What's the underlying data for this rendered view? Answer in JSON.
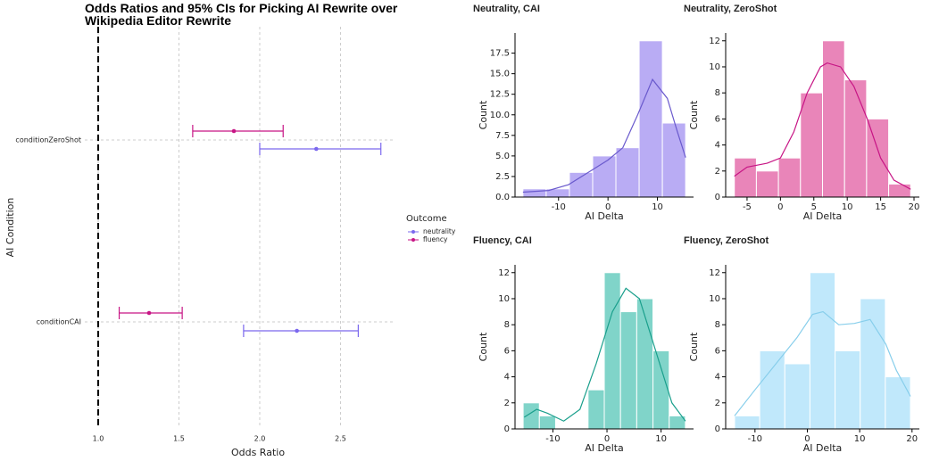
{
  "chart_data": [
    {
      "type": "forest",
      "title": "Odds Ratios and 95% CIs for Picking AI Rewrite over Wikipedia Editor Rewrite",
      "xlabel": "Odds Ratio",
      "ylabel": "AI Condition",
      "categories": [
        "conditionZeroShot",
        "conditionCAI"
      ],
      "series": [
        {
          "name": "neutrality",
          "color": "#7b68ee",
          "values": [
            2.35,
            2.23
          ],
          "lower": [
            2.0,
            1.9
          ],
          "upper": [
            2.75,
            2.61
          ]
        },
        {
          "name": "fluency",
          "color": "#c71585",
          "values": [
            1.84,
            1.315
          ],
          "lower": [
            1.585,
            1.13
          ],
          "upper": [
            2.145,
            1.52
          ]
        }
      ],
      "legend_title": "Outcome",
      "reference_line": 1,
      "xlim": [
        0.917,
        2.84
      ],
      "xticks": [
        {
          "value": 1,
          "label": "1.0"
        },
        1.5,
        {
          "value": 2,
          "label": "2.0"
        },
        2.5
      ],
      "grid": true
    },
    {
      "type": "histogram",
      "title": "Neutrality, CAI",
      "xlabel": "AI Delta",
      "ylabel": "Count",
      "color": "#b9acf4",
      "line_color": "#6a5acd",
      "bins": [
        -17.2,
        -12.5,
        -7.8,
        -3.1,
        1.6,
        6.3,
        11.0,
        15.7
      ],
      "counts": [
        1,
        1,
        3,
        5,
        6,
        19,
        9
      ],
      "kde": {
        "x": [
          -17.2,
          -12,
          -8,
          -4,
          0,
          3,
          6,
          9,
          12,
          14,
          15.7
        ],
        "y": [
          0.6,
          0.8,
          1.5,
          3,
          4.5,
          6,
          10,
          14.3,
          12,
          8,
          4.8
        ]
      },
      "xlim": [
        -18.8,
        17.3
      ],
      "ylim": [
        0,
        19.95
      ],
      "xticks": [
        -10,
        0,
        10
      ],
      "yticks": [
        {
          "value": 0,
          "label": "0.0"
        },
        2.5,
        {
          "value": 5,
          "label": "5.0"
        },
        7.5,
        {
          "value": 10,
          "label": "10.0"
        },
        12.5,
        {
          "value": 15,
          "label": "15.0"
        },
        17.5
      ]
    },
    {
      "type": "histogram",
      "title": "Neutrality, ZeroShot",
      "xlabel": "AI Delta",
      "ylabel": "Count",
      "color": "#e985b9",
      "line_color": "#c71585",
      "bins": [
        -6.9,
        -3.6,
        -0.3,
        3.0,
        6.3,
        9.6,
        12.9,
        16.2,
        19.5
      ],
      "counts": [
        3,
        2,
        3,
        8,
        12,
        9,
        6,
        1
      ],
      "kde": {
        "x": [
          -6.9,
          -5,
          -2,
          0,
          2,
          4,
          6,
          7,
          9,
          11,
          13,
          15,
          17,
          19.5
        ],
        "y": [
          1.6,
          2.3,
          2.6,
          3,
          5,
          8,
          10,
          10.3,
          10,
          8.5,
          6,
          3,
          1.3,
          0.6
        ]
      },
      "xlim": [
        -8.2,
        20.8
      ],
      "ylim": [
        0,
        12.6
      ],
      "xticks": [
        -5,
        0,
        5,
        10,
        15,
        20
      ],
      "yticks": [
        0,
        2,
        4,
        6,
        8,
        10,
        12
      ]
    },
    {
      "type": "histogram",
      "title": "Fluency, CAI",
      "xlabel": "AI Delta",
      "ylabel": "Count",
      "color": "#80d4c9",
      "line_color": "#1a9f8c",
      "bins": [
        -15.5,
        -12.5,
        -9.5,
        -6.5,
        -3.5,
        -0.5,
        2.5,
        5.5,
        8.5,
        11.5,
        14.5
      ],
      "counts": [
        2,
        1,
        0,
        0,
        3,
        12,
        9,
        10,
        6,
        1
      ],
      "kde": {
        "x": [
          -15.3,
          -13,
          -11,
          -8,
          -5,
          -2,
          1,
          3.5,
          6,
          9,
          12,
          14.5
        ],
        "y": [
          0.9,
          1.5,
          1.2,
          0.6,
          1.5,
          5,
          9,
          10.8,
          10,
          6,
          2,
          0.6
        ]
      },
      "xlim": [
        -17,
        16
      ],
      "ylim": [
        0,
        12.6
      ],
      "xticks": [
        -10,
        0,
        10
      ],
      "yticks": [
        0,
        2,
        4,
        6,
        8,
        10,
        12
      ]
    },
    {
      "type": "histogram",
      "title": "Fluency, ZeroShot",
      "xlabel": "AI Delta",
      "ylabel": "Count",
      "color": "#c0e8fb",
      "line_color": "#87ceeb",
      "bins": [
        -13.9,
        -9.1,
        -4.3,
        0.5,
        5.3,
        10.1,
        14.9,
        19.7
      ],
      "counts": [
        1,
        6,
        5,
        12,
        6,
        10,
        4
      ],
      "kde": {
        "x": [
          -13.9,
          -10,
          -6,
          -2,
          1,
          3,
          6,
          9,
          12,
          15,
          17,
          19.7
        ],
        "y": [
          1,
          3,
          5,
          7,
          8.8,
          9,
          8,
          8.1,
          8.4,
          6.5,
          4.5,
          2.5
        ]
      },
      "xlim": [
        -15.6,
        21.4
      ],
      "ylim": [
        0,
        12.6
      ],
      "xticks": [
        -10,
        0,
        10,
        20
      ],
      "yticks": [
        0,
        2,
        4,
        6,
        8,
        10,
        12
      ]
    }
  ]
}
